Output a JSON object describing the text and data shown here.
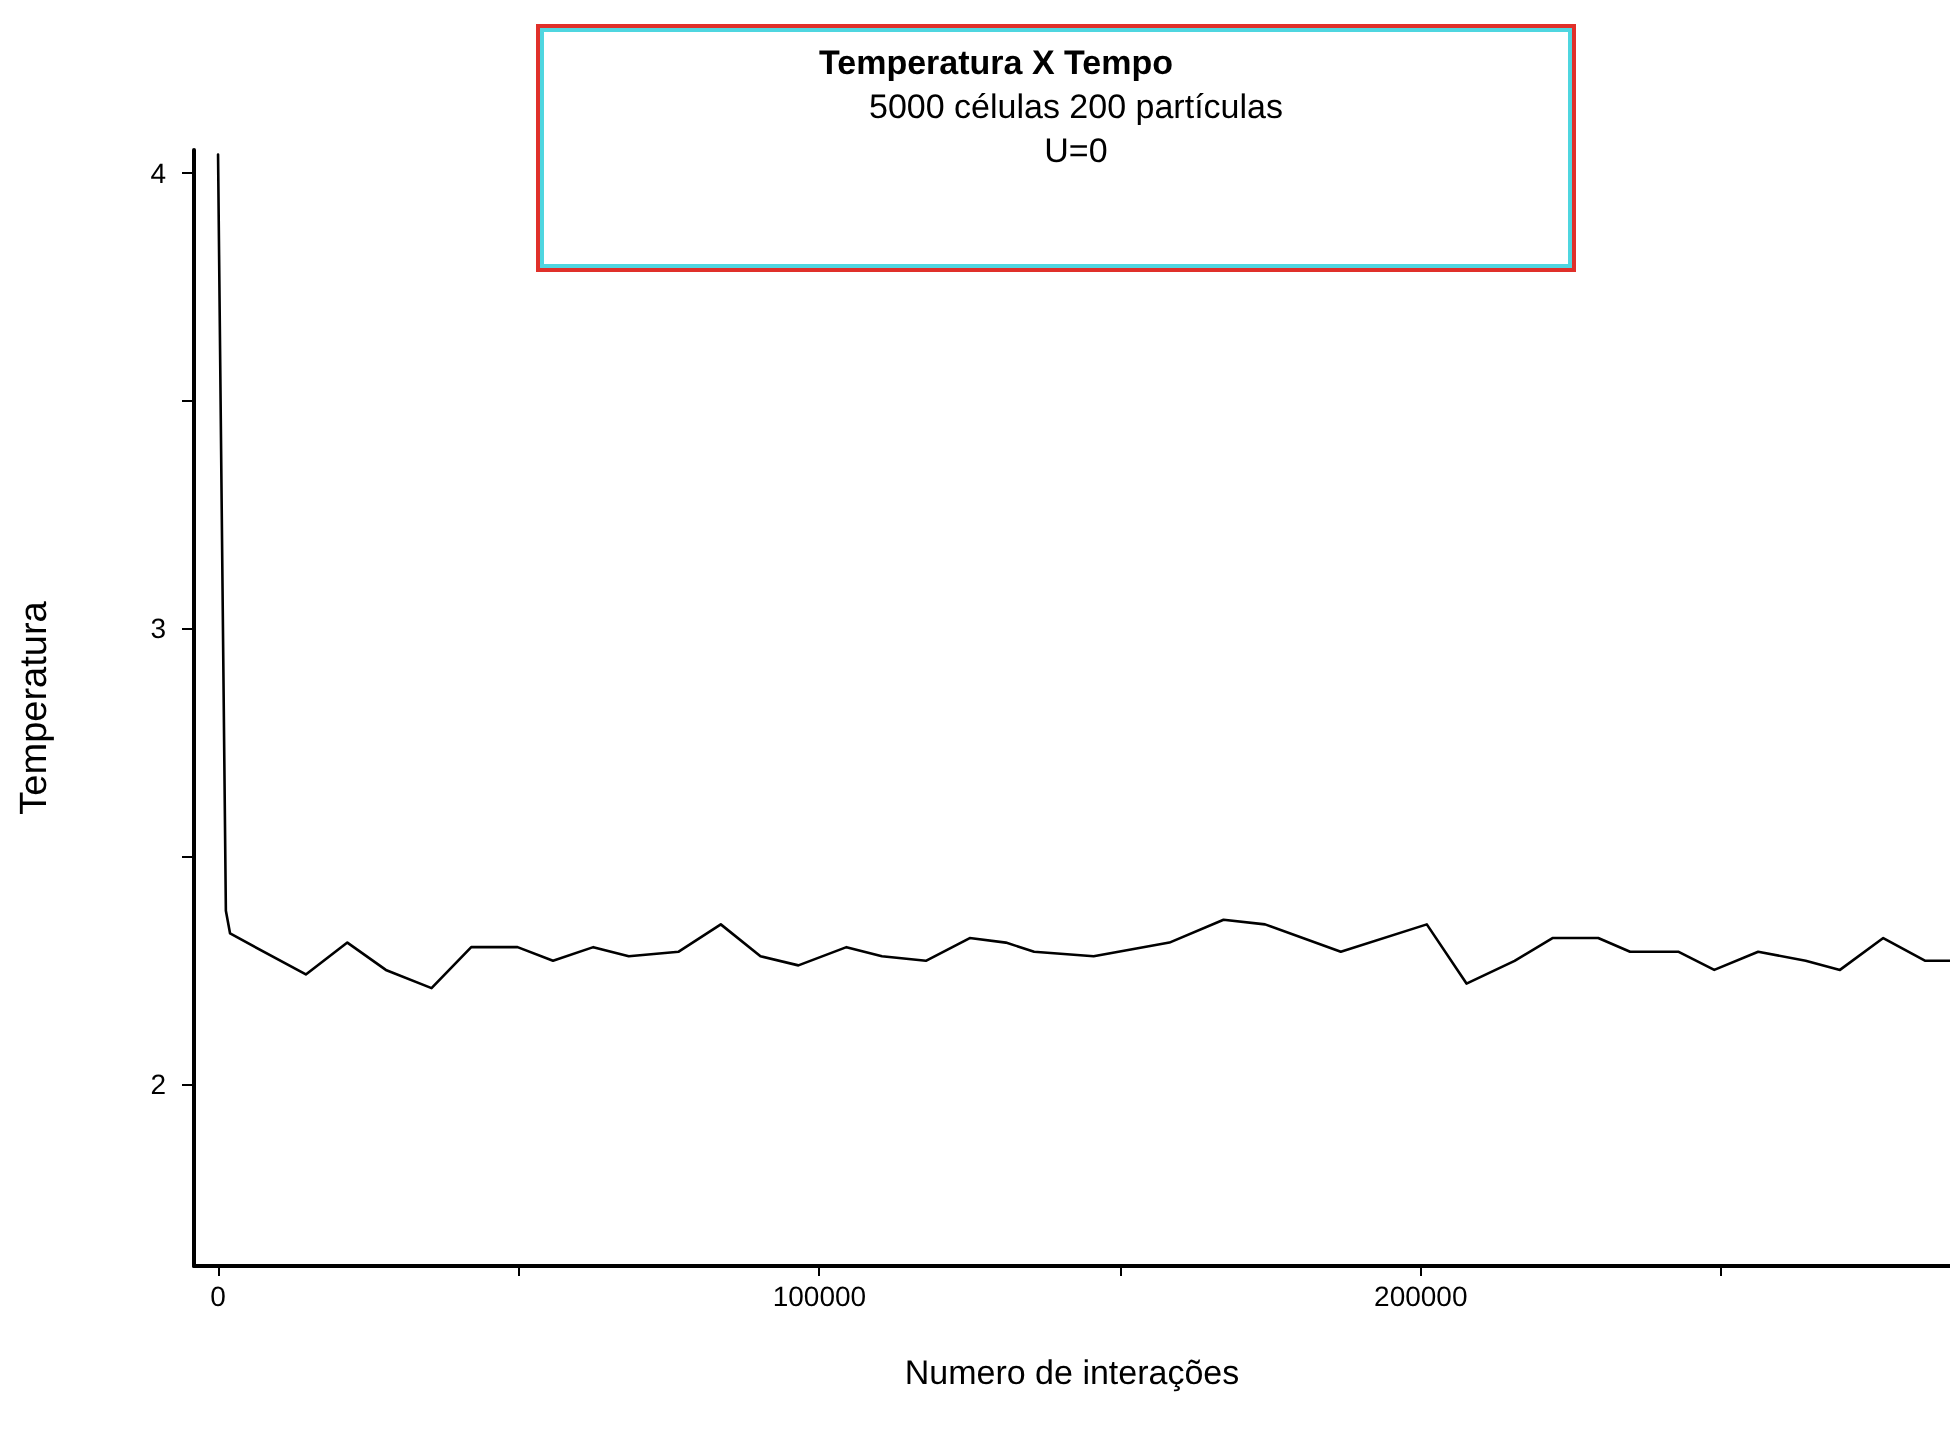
{
  "chart_data": {
    "type": "line",
    "title": "Temperatura X Tempo",
    "subtitle": "5000 células 200 partículas",
    "annotations": [
      "U=0"
    ],
    "xlabel": "Numero de interações",
    "ylabel": "Temperatura",
    "series": [
      {
        "color": "#000000",
        "x": [
          0,
          1300,
          2000,
          14600,
          21500,
          27900,
          35500,
          42100,
          49800,
          55700,
          62400,
          68300,
          76600,
          83600,
          90200,
          96500,
          104500,
          110400,
          117700,
          125000,
          131000,
          135700,
          145600,
          158200,
          167200,
          174100,
          186700,
          201000,
          207600,
          215600,
          221900,
          229500,
          234800,
          242800,
          248800,
          256100,
          264000,
          269700,
          276900,
          283900,
          288000
        ],
        "values": [
          4.04,
          2.38,
          2.33,
          2.24,
          2.31,
          2.25,
          2.21,
          2.3,
          2.3,
          2.27,
          2.3,
          2.28,
          2.29,
          2.35,
          2.28,
          2.26,
          2.3,
          2.28,
          2.27,
          2.32,
          2.31,
          2.29,
          2.28,
          2.31,
          2.36,
          2.35,
          2.29,
          2.35,
          2.22,
          2.27,
          2.32,
          2.32,
          2.29,
          2.29,
          2.25,
          2.29,
          2.27,
          2.25,
          2.32,
          2.27,
          2.27
        ]
      }
    ],
    "xlim": [
      -4000,
      288000
    ],
    "xticks": [
      0,
      {
        "value": 50000,
        "label": null
      },
      100000,
      {
        "value": 150000,
        "label": null
      },
      200000,
      {
        "value": 250000,
        "label": null
      }
    ],
    "ylim": [
      1.6,
      4.05
    ],
    "yticks": [
      2,
      {
        "value": 2.5,
        "label": null
      },
      3,
      {
        "value": 3.5,
        "label": null
      },
      4
    ],
    "grid": false,
    "marker": "none",
    "line_style": "solid"
  }
}
